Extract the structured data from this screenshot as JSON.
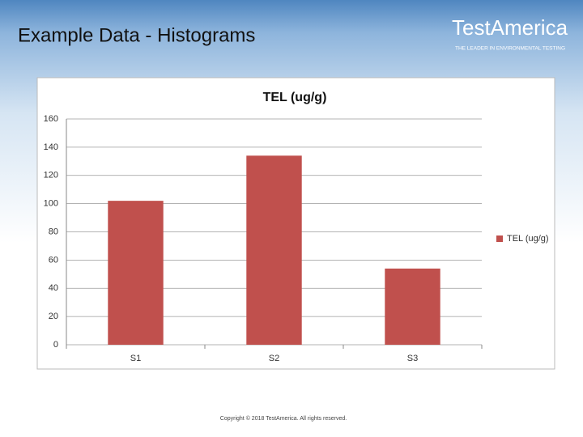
{
  "slide_title": "Example Data - Histograms",
  "logo": {
    "name": "TestAmerica",
    "tagline": "THE LEADER IN ENVIRONMENTAL TESTING"
  },
  "footer": "Copyright © 2018 TestAmerica. All rights reserved.",
  "chart_data": {
    "type": "bar",
    "title": "TEL (ug/g)",
    "categories": [
      "S1",
      "S2",
      "S3"
    ],
    "series": [
      {
        "name": "TEL (ug/g)",
        "color": "#c0504d",
        "values": [
          102,
          134,
          54
        ]
      }
    ],
    "ylim": [
      0,
      160
    ],
    "yticks": [
      0,
      20,
      40,
      60,
      80,
      100,
      120,
      140,
      160
    ],
    "grid": true,
    "legend": "right"
  }
}
